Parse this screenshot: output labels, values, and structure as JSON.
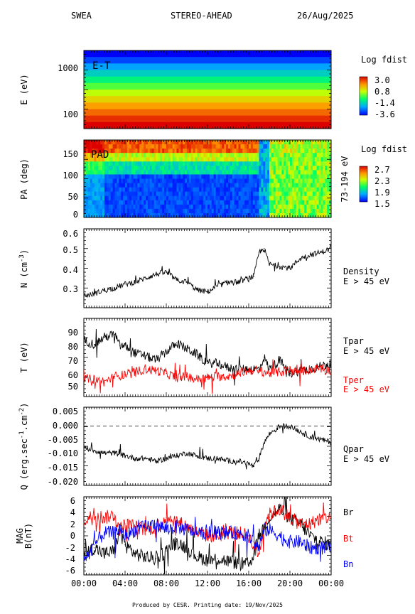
{
  "header": {
    "instrument": "SWEA",
    "spacecraft": "STEREO-AHEAD",
    "date": "26/Aug/2025"
  },
  "footer": {
    "credit": "Produced by CESR.   Printing date: 19/Nov/2025"
  },
  "chart_data": [
    {
      "type": "heatmap",
      "panel": "energy-time",
      "annotation": "E-T",
      "ylabel": "E (eV)",
      "y_scale": "log",
      "y_ticks": [
        "1000",
        "100"
      ],
      "colorbar": {
        "title": "Log fdist",
        "ticks": [
          "3.0",
          "0.8",
          "-1.4",
          "-3.6"
        ],
        "range": [
          -3.6,
          3.0
        ]
      },
      "bands": [
        -3.6,
        -3.0,
        -2.2,
        -1.6,
        -1.0,
        -0.3,
        0.4,
        1.0,
        1.6,
        2.1,
        2.6,
        3.0
      ],
      "xlim": [
        "00:00",
        "24:00"
      ]
    },
    {
      "type": "heatmap",
      "panel": "pitch-angle",
      "annotation": "PAD",
      "ylabel": "PA (deg)",
      "y_ticks": [
        "150",
        "100",
        "50",
        "0"
      ],
      "ylim": [
        0,
        180
      ],
      "right_label": "73-194 eV",
      "colorbar": {
        "title": "Log fdist",
        "ticks": [
          "2.7",
          "2.3",
          "1.9",
          "1.5"
        ],
        "range": [
          1.5,
          2.8
        ]
      },
      "xlim": [
        "00:00",
        "24:00"
      ]
    },
    {
      "type": "line",
      "panel": "density",
      "ylabel": "N (cm",
      "ylabel_sup": "-3",
      "ylabel_end": ")",
      "y_ticks": [
        "0.6",
        "0.5",
        "0.4",
        "0.3"
      ],
      "ylim": [
        0.22,
        0.62
      ],
      "series": [
        {
          "label_lines": [
            "Density",
            "E > 45 eV"
          ],
          "color": "#000000",
          "x": [
            0,
            1,
            2,
            3,
            4,
            5,
            6,
            7,
            8,
            9,
            10,
            11,
            12,
            13,
            14,
            15,
            16,
            16.5,
            17,
            17.5,
            18,
            19,
            20,
            21,
            22,
            23,
            24
          ],
          "y": [
            0.28,
            0.29,
            0.31,
            0.32,
            0.34,
            0.35,
            0.37,
            0.39,
            0.4,
            0.36,
            0.35,
            0.31,
            0.3,
            0.33,
            0.35,
            0.35,
            0.37,
            0.38,
            0.5,
            0.52,
            0.44,
            0.43,
            0.42,
            0.47,
            0.49,
            0.5,
            0.52
          ]
        }
      ]
    },
    {
      "type": "line",
      "panel": "temperature",
      "ylabel": "T (eV)",
      "y_ticks": [
        "90",
        "80",
        "70",
        "60",
        "50"
      ],
      "ylim": [
        43,
        97
      ],
      "series": [
        {
          "label_lines": [
            "Tpar",
            "E > 45 eV"
          ],
          "color": "#000000",
          "x": [
            0,
            1,
            2,
            3,
            3.5,
            4,
            5,
            6,
            7,
            8,
            9,
            10,
            11,
            12,
            13,
            14,
            15,
            16,
            17,
            17.5,
            18,
            19,
            20,
            21,
            22,
            23,
            24
          ],
          "y": [
            82,
            79,
            84,
            86,
            78,
            78,
            73,
            71,
            68,
            74,
            80,
            76,
            72,
            66,
            66,
            63,
            62,
            62,
            62,
            70,
            62,
            68,
            59,
            61,
            62,
            64,
            66
          ]
        },
        {
          "label_lines": [
            "Tper",
            "E > 45 eV"
          ],
          "color": "#ff0000",
          "x": [
            0,
            1,
            2,
            3,
            4,
            5,
            6,
            7,
            8,
            9,
            10,
            11,
            12,
            13,
            14,
            15,
            16,
            17,
            18,
            19,
            20,
            21,
            22,
            23,
            24
          ],
          "y": [
            55,
            55,
            53,
            57,
            58,
            60,
            62,
            61,
            59,
            56,
            57,
            55,
            56,
            57,
            57,
            59,
            61,
            61,
            59,
            60,
            61,
            60,
            62,
            62,
            61
          ]
        }
      ]
    },
    {
      "type": "line",
      "panel": "heat-flux",
      "ylabel": "Q (erg.sec",
      "ylabel_sup1": "-1",
      "ylabel_mid": ".cm",
      "ylabel_sup2": "-2",
      "ylabel_end": ")",
      "y_ticks": [
        "0.005",
        "0.000",
        "-0.005",
        "-0.010",
        "-0.015",
        "-0.020"
      ],
      "ylim": [
        -0.022,
        0.007
      ],
      "zero_line": true,
      "series": [
        {
          "label_lines": [
            "Qpar",
            "E > 45 eV"
          ],
          "color": "#000000",
          "x": [
            0,
            1,
            2,
            3,
            4,
            5,
            6,
            7,
            8,
            9,
            10,
            11,
            12,
            13,
            14,
            15,
            16,
            16.5,
            17,
            17.5,
            18,
            19,
            20,
            21,
            22,
            23,
            24
          ],
          "y": [
            -0.008,
            -0.009,
            -0.01,
            -0.01,
            -0.011,
            -0.012,
            -0.012,
            -0.013,
            -0.012,
            -0.011,
            -0.01,
            -0.011,
            -0.012,
            -0.012,
            -0.013,
            -0.013,
            -0.014,
            -0.015,
            -0.012,
            -0.006,
            -0.003,
            0.0,
            0.0,
            -0.002,
            -0.004,
            -0.005,
            -0.006
          ]
        }
      ]
    },
    {
      "type": "line",
      "panel": "magnetic-field",
      "ylabel_line1": "MAG",
      "ylabel_line2": "B(nT)",
      "y_ticks": [
        "6",
        "4",
        "2",
        "0",
        "-2",
        "-4",
        "-6"
      ],
      "ylim": [
        -6.5,
        6.5
      ],
      "x_ticks": [
        "00:00",
        "04:00",
        "08:00",
        "12:00",
        "16:00",
        "20:00",
        "00:00"
      ],
      "xlim": [
        0,
        24
      ],
      "series": [
        {
          "name": "Br",
          "color": "#000000",
          "x": [
            0,
            1,
            2,
            3,
            3.5,
            4,
            5,
            6,
            7,
            8,
            9,
            10,
            11,
            12,
            13,
            14,
            15,
            16,
            16.5,
            17,
            17.5,
            18,
            19,
            20,
            21,
            22,
            23,
            24
          ],
          "y": [
            -3,
            -2,
            -3,
            -2.5,
            1.5,
            -1.5,
            -3,
            -3.5,
            -3.8,
            -2.5,
            -1,
            -2,
            -3.5,
            -4,
            -3.8,
            -4.2,
            -4.6,
            -4.8,
            -3,
            0,
            1.5,
            3,
            4.5,
            3,
            2,
            0,
            -1,
            -1.5
          ]
        },
        {
          "name": "Bt",
          "color": "#ff0000",
          "x": [
            0,
            1,
            2,
            3,
            3.5,
            4,
            5,
            6,
            7,
            8,
            9,
            10,
            11,
            12,
            13,
            14,
            15,
            16,
            16.5,
            17,
            17.5,
            18,
            19,
            20,
            21,
            22,
            23,
            24
          ],
          "y": [
            2.5,
            3.5,
            3,
            3.5,
            1,
            2,
            1.5,
            1,
            1.5,
            3,
            2.5,
            1.5,
            0.5,
            0,
            0,
            0.5,
            0.5,
            0,
            -2,
            -3,
            2,
            3.5,
            4.5,
            3,
            2,
            2,
            3,
            3
          ]
        },
        {
          "name": "Bn",
          "color": "#0000ff",
          "x": [
            0,
            1,
            2,
            3,
            3.5,
            4,
            5,
            6,
            7,
            8,
            9,
            10,
            11,
            12,
            13,
            14,
            15,
            16,
            16.5,
            17,
            17.5,
            18,
            19,
            20,
            21,
            22,
            23,
            24
          ],
          "y": [
            -4,
            -1.5,
            0.5,
            0.5,
            1,
            0,
            1,
            1.5,
            2,
            1,
            1.5,
            1,
            0.5,
            0.5,
            0.5,
            0.5,
            0.5,
            0,
            -1,
            -2,
            1,
            1,
            0,
            -1,
            -1,
            -2,
            -2,
            -2
          ]
        }
      ]
    }
  ]
}
